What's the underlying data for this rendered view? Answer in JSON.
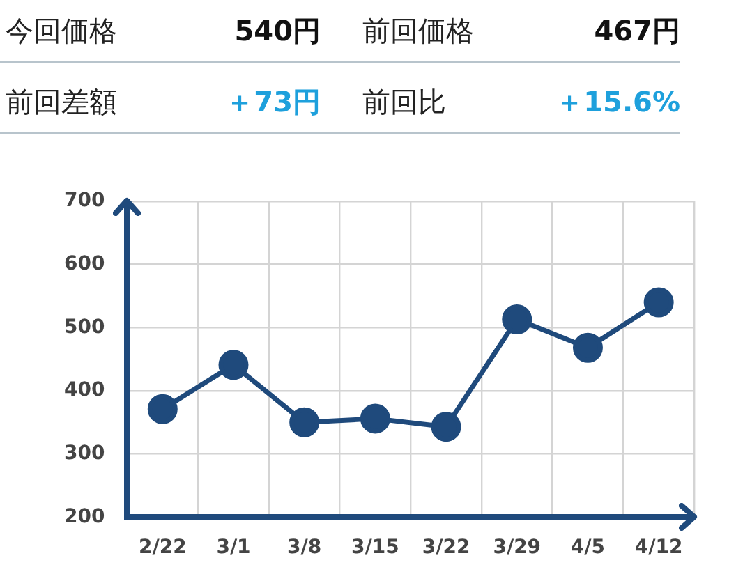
{
  "chart_data": [
    {
      "type": "other",
      "annotations": [
        "今回価格",
        "540円",
        "前回価格",
        "467円",
        "前回差額",
        "＋73円",
        "前回比",
        "＋15.6%"
      ]
    },
    {
      "type": "line",
      "categories": [
        "2/22",
        "3/1",
        "3/8",
        "3/15",
        "3/22",
        "3/29",
        "4/5",
        "4/12"
      ],
      "series": [
        {
          "color": "#1f4a7c",
          "values": [
            371,
            441,
            350,
            356,
            343,
            513,
            468,
            540
          ]
        }
      ],
      "ylim": [
        200,
        700
      ],
      "yticks": [
        200,
        300,
        400,
        500,
        600,
        700
      ],
      "grid": true,
      "legend": false,
      "marker": "circle",
      "line_style": "solid"
    }
  ]
}
